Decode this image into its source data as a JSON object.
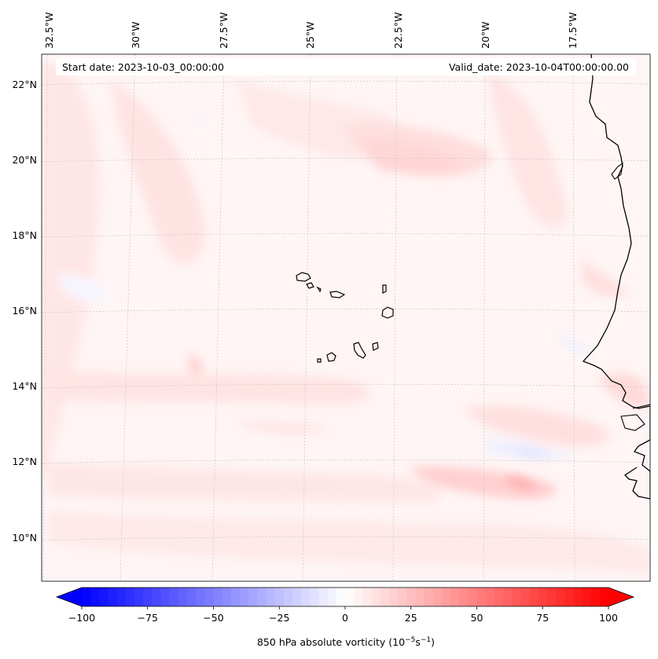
{
  "header": {
    "start_date": "Start date: 2023-10-03_00:00:00",
    "valid_date": "Valid_date: 2023-10-04T00:00:00.00"
  },
  "longitude_labels": [
    "32.5°W",
    "30°W",
    "27.5°W",
    "25°W",
    "22.5°W",
    "20°W",
    "17.5°W"
  ],
  "latitude_labels": [
    "22°N",
    "20°N",
    "18°N",
    "16°N",
    "14°N",
    "12°N",
    "10°N"
  ],
  "colorbar": {
    "ticks": [
      "−100",
      "−75",
      "−50",
      "−25",
      "0",
      "25",
      "50",
      "75",
      "100"
    ],
    "label_main": "850 hPa absolute vorticity (10",
    "label_exp1": "−5",
    "label_mid": "s",
    "label_exp2": "−1",
    "label_end": ")",
    "min_color": "#0000ff",
    "mid_color": "#ffffff",
    "max_color": "#ff0000",
    "levels": 60,
    "extend": "both"
  },
  "colors": {
    "coastline": "#000000",
    "gridline": "#c8c8c8",
    "background_tint": "#fff4f4"
  }
}
